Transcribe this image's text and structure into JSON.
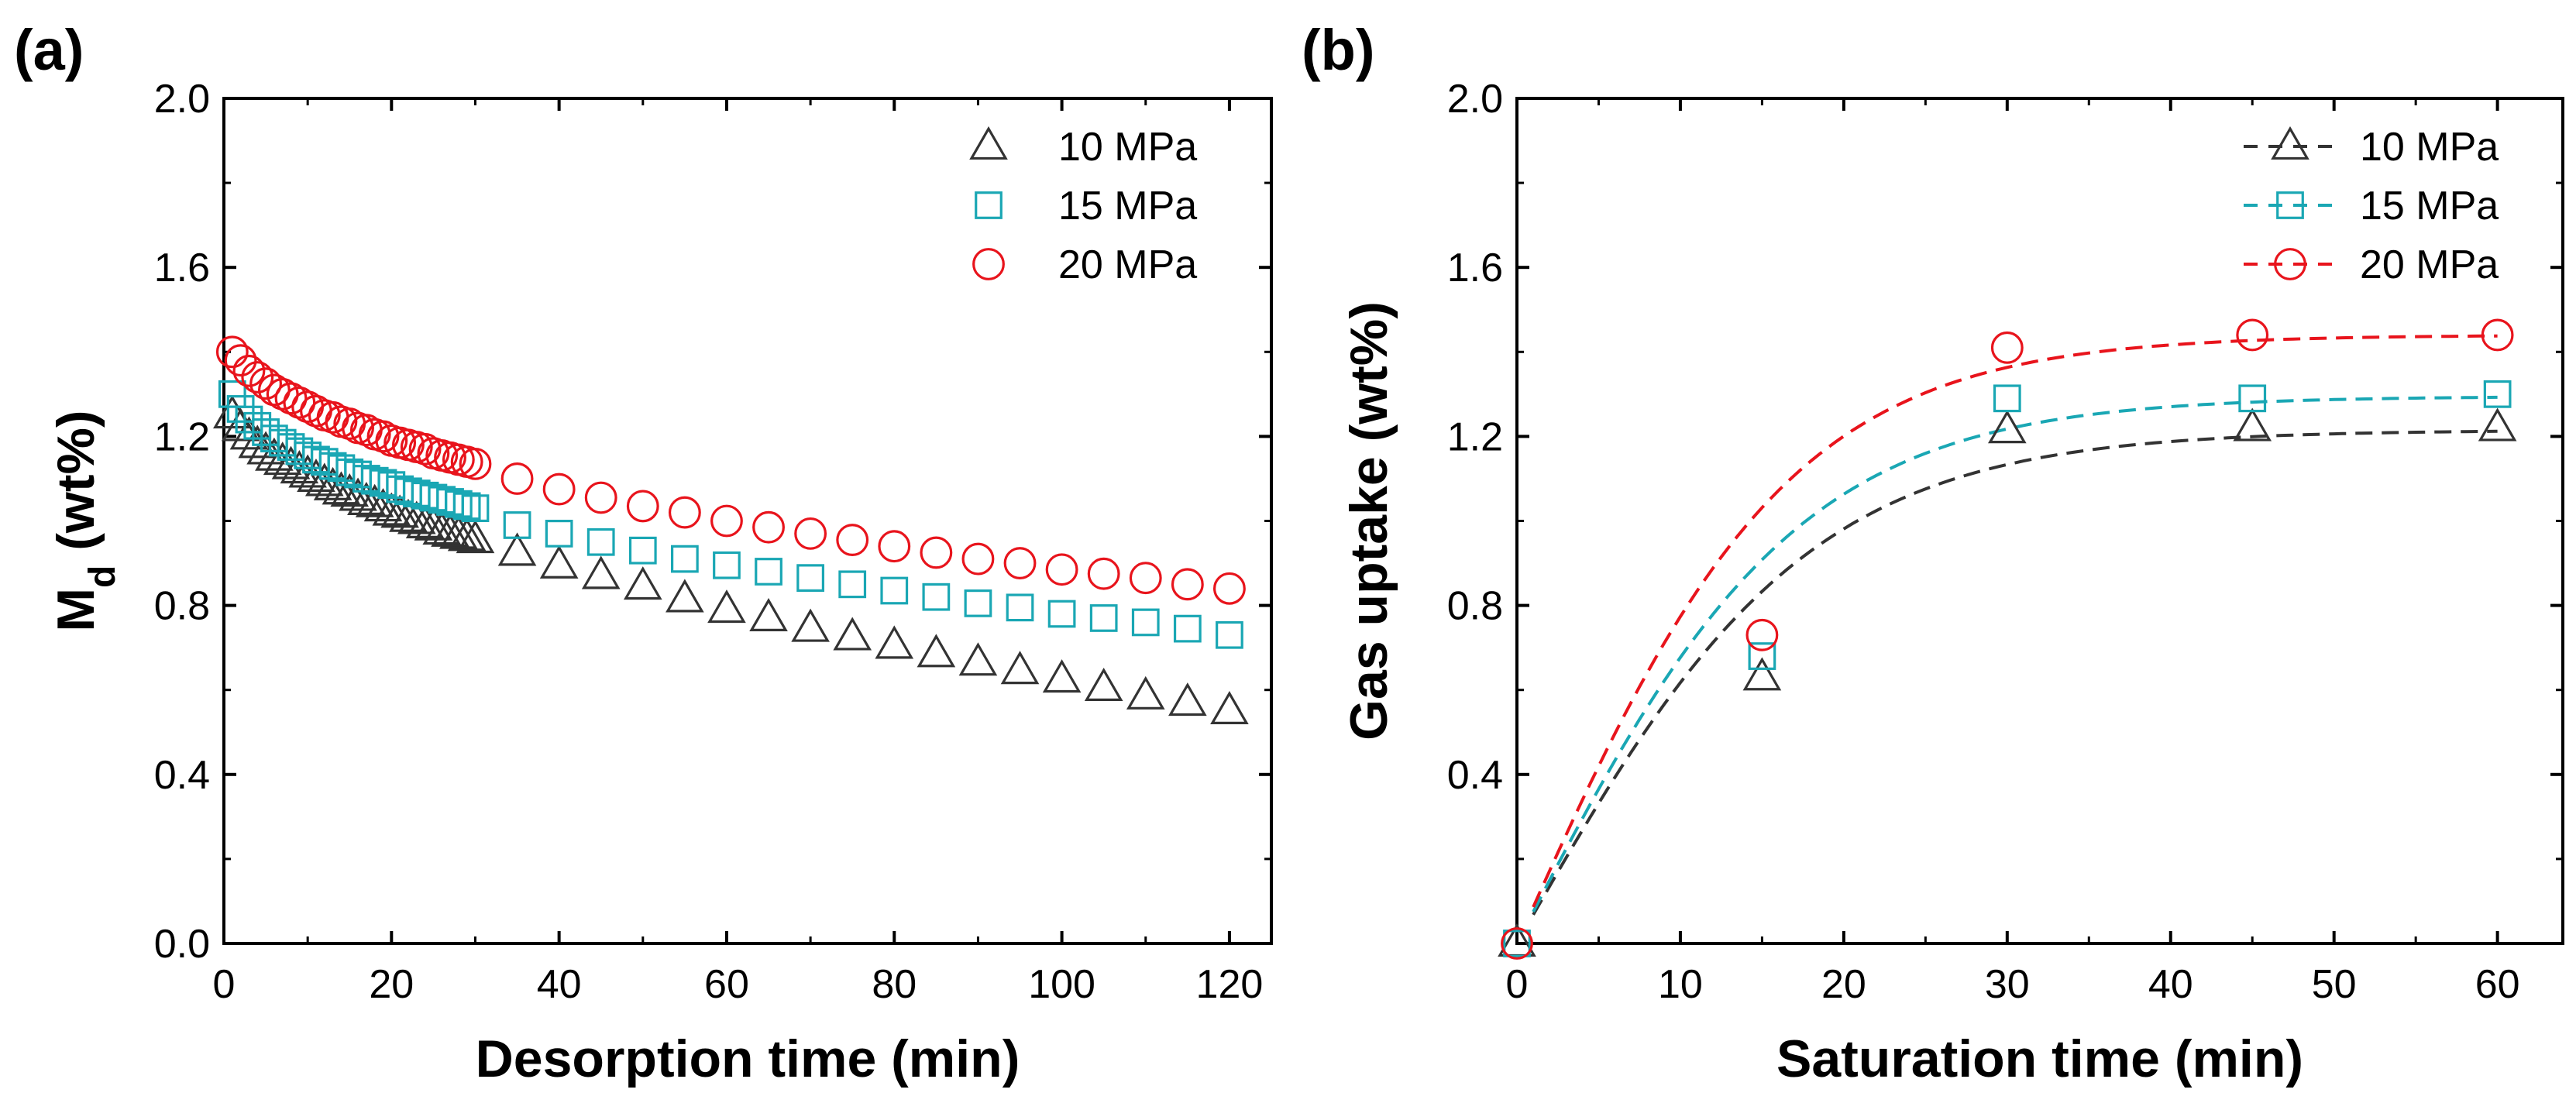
{
  "colors": {
    "black": "#000000",
    "p10": "#333333",
    "p15": "#1aa7b4",
    "p20": "#e8141c"
  },
  "chart_data": [
    {
      "type": "scatter",
      "panel_label": "(a)",
      "xlabel": "Desorption time (min)",
      "ylabel_main": "M",
      "ylabel_sub": "d",
      "ylabel_rest": " (wt%)",
      "xlim": [
        0,
        125
      ],
      "ylim": [
        0,
        2.0
      ],
      "xticks": [
        "0",
        "20",
        "40",
        "60",
        "80",
        "100",
        "120"
      ],
      "yticks": [
        "0.0",
        "0.4",
        "0.8",
        "1.2",
        "1.6",
        "2.0"
      ],
      "legend_position": "top-right",
      "series": [
        {
          "name": "10 MPa",
          "marker": "triangle",
          "color": "#333333",
          "x": [
            1,
            2,
            3,
            4,
            5,
            6,
            7,
            8,
            9,
            10,
            11,
            12,
            13,
            14,
            15,
            16,
            17,
            18,
            19,
            20,
            21,
            22,
            23,
            24,
            25,
            26,
            27,
            28,
            29,
            30,
            35,
            40,
            45,
            50,
            55,
            60,
            65,
            70,
            75,
            80,
            85,
            90,
            95,
            100,
            105,
            110,
            115,
            120
          ],
          "y": [
            1.25,
            1.22,
            1.2,
            1.18,
            1.165,
            1.15,
            1.14,
            1.13,
            1.12,
            1.11,
            1.1,
            1.09,
            1.08,
            1.07,
            1.065,
            1.055,
            1.045,
            1.04,
            1.03,
            1.02,
            1.015,
            1.005,
            1.0,
            0.99,
            0.985,
            0.975,
            0.97,
            0.965,
            0.96,
            0.955,
            0.925,
            0.895,
            0.87,
            0.845,
            0.815,
            0.79,
            0.77,
            0.745,
            0.725,
            0.705,
            0.685,
            0.665,
            0.645,
            0.625,
            0.605,
            0.585,
            0.57,
            0.55
          ]
        },
        {
          "name": "15 MPa",
          "marker": "square",
          "color": "#1aa7b4",
          "x": [
            1,
            2,
            3,
            4,
            5,
            6,
            7,
            8,
            9,
            10,
            11,
            12,
            13,
            14,
            15,
            16,
            17,
            18,
            19,
            20,
            21,
            22,
            23,
            24,
            25,
            26,
            27,
            28,
            29,
            30,
            35,
            40,
            45,
            50,
            55,
            60,
            65,
            70,
            75,
            80,
            85,
            90,
            95,
            100,
            105,
            110,
            115,
            120
          ],
          "y": [
            1.3,
            1.265,
            1.24,
            1.225,
            1.21,
            1.195,
            1.185,
            1.175,
            1.165,
            1.155,
            1.145,
            1.14,
            1.13,
            1.125,
            1.115,
            1.11,
            1.1,
            1.095,
            1.09,
            1.085,
            1.075,
            1.07,
            1.065,
            1.06,
            1.055,
            1.05,
            1.045,
            1.04,
            1.035,
            1.03,
            0.99,
            0.97,
            0.95,
            0.93,
            0.91,
            0.895,
            0.88,
            0.865,
            0.85,
            0.835,
            0.82,
            0.805,
            0.795,
            0.78,
            0.77,
            0.76,
            0.745,
            0.73
          ]
        },
        {
          "name": "20 MPa",
          "marker": "circle",
          "color": "#e8141c",
          "x": [
            1,
            2,
            3,
            4,
            5,
            6,
            7,
            8,
            9,
            10,
            11,
            12,
            13,
            14,
            15,
            16,
            17,
            18,
            19,
            20,
            21,
            22,
            23,
            24,
            25,
            26,
            27,
            28,
            29,
            30,
            35,
            40,
            45,
            50,
            55,
            60,
            65,
            70,
            75,
            80,
            85,
            90,
            95,
            100,
            105,
            110,
            115,
            120
          ],
          "y": [
            1.4,
            1.38,
            1.355,
            1.34,
            1.325,
            1.31,
            1.3,
            1.29,
            1.28,
            1.27,
            1.26,
            1.25,
            1.245,
            1.235,
            1.23,
            1.22,
            1.215,
            1.205,
            1.2,
            1.19,
            1.185,
            1.18,
            1.175,
            1.17,
            1.16,
            1.155,
            1.15,
            1.145,
            1.14,
            1.135,
            1.1,
            1.075,
            1.055,
            1.035,
            1.02,
            1.0,
            0.985,
            0.97,
            0.955,
            0.94,
            0.925,
            0.91,
            0.9,
            0.885,
            0.875,
            0.865,
            0.85,
            0.84
          ]
        }
      ]
    },
    {
      "type": "line",
      "panel_label": "(b)",
      "xlabel": "Saturation time (min)",
      "ylabel": "Gas uptake (wt%)",
      "xlim": [
        0,
        64
      ],
      "ylim": [
        0,
        2.0
      ],
      "xticks": [
        "0",
        "10",
        "20",
        "30",
        "40",
        "50",
        "60"
      ],
      "yticks": [
        "0.4",
        "0.8",
        "1.2",
        "1.6",
        "2.0"
      ],
      "legend_position": "top-right",
      "series": [
        {
          "name": "10 MPa",
          "marker": "triangle",
          "color": "#333333",
          "x": [
            0,
            15,
            30,
            45,
            60
          ],
          "y": [
            0.0,
            0.63,
            1.215,
            1.22,
            1.22
          ],
          "fit_plateau": 1.215,
          "fit_k": 0.056
        },
        {
          "name": "15 MPa",
          "marker": "square",
          "color": "#1aa7b4",
          "x": [
            0,
            15,
            30,
            45,
            60
          ],
          "y": [
            0.0,
            0.68,
            1.29,
            1.29,
            1.3
          ],
          "fit_plateau": 1.295,
          "fit_k": 0.058
        },
        {
          "name": "20 MPa",
          "marker": "circle",
          "color": "#e8141c",
          "x": [
            0,
            15,
            30,
            45,
            60
          ],
          "y": [
            0.0,
            0.73,
            1.41,
            1.44,
            1.44
          ],
          "fit_plateau": 1.44,
          "fit_k": 0.06
        }
      ]
    }
  ]
}
